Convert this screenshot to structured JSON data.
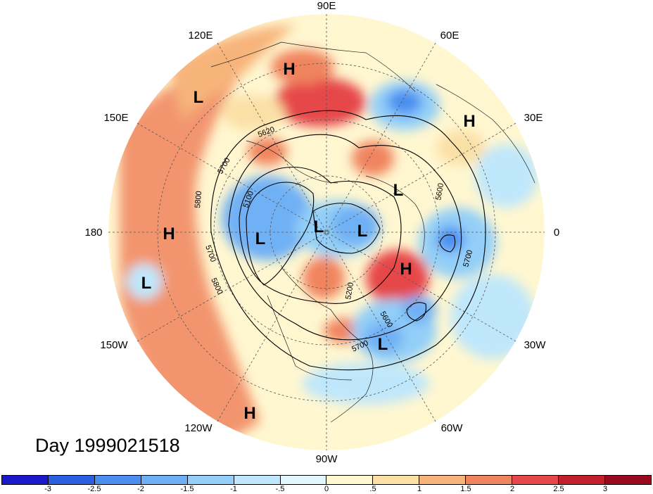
{
  "title": "Day 1999021518",
  "longitude_labels": {
    "lon_90e": "90E",
    "lon_60e": "60E",
    "lon_30e": "30E",
    "lon_0": "0",
    "lon_30w": "30W",
    "lon_60w": "60W",
    "lon_90w": "90W",
    "lon_120w": "120W",
    "lon_150w": "150W",
    "lon_180": "180",
    "lon_150e": "150E",
    "lon_120e": "120E"
  },
  "pressure_centers": [
    "H",
    "L",
    "H",
    "L",
    "L",
    "L",
    "L",
    "L",
    "H",
    "H",
    "L",
    "H"
  ],
  "contour_labels": [
    "5100",
    "5200",
    "5600",
    "5620",
    "5700",
    "5700",
    "5700",
    "5700",
    "5800",
    "5800",
    "5600"
  ],
  "colorbar": {
    "ticks": [
      "-3",
      "-2.5",
      "-2",
      "-1.5",
      "-1",
      "-.5",
      "0",
      ".5",
      "1",
      "1.5",
      "2",
      "2.5",
      "3"
    ],
    "colors": [
      "#1a18c8",
      "#2b5fe0",
      "#4a8ef0",
      "#6fb0f5",
      "#93cff8",
      "#bfe7fb",
      "#e4f6fd",
      "#fff7d0",
      "#fbe0a6",
      "#f7b47a",
      "#f0845e",
      "#e6474a",
      "#c21e2b",
      "#9a0a1e"
    ]
  }
}
